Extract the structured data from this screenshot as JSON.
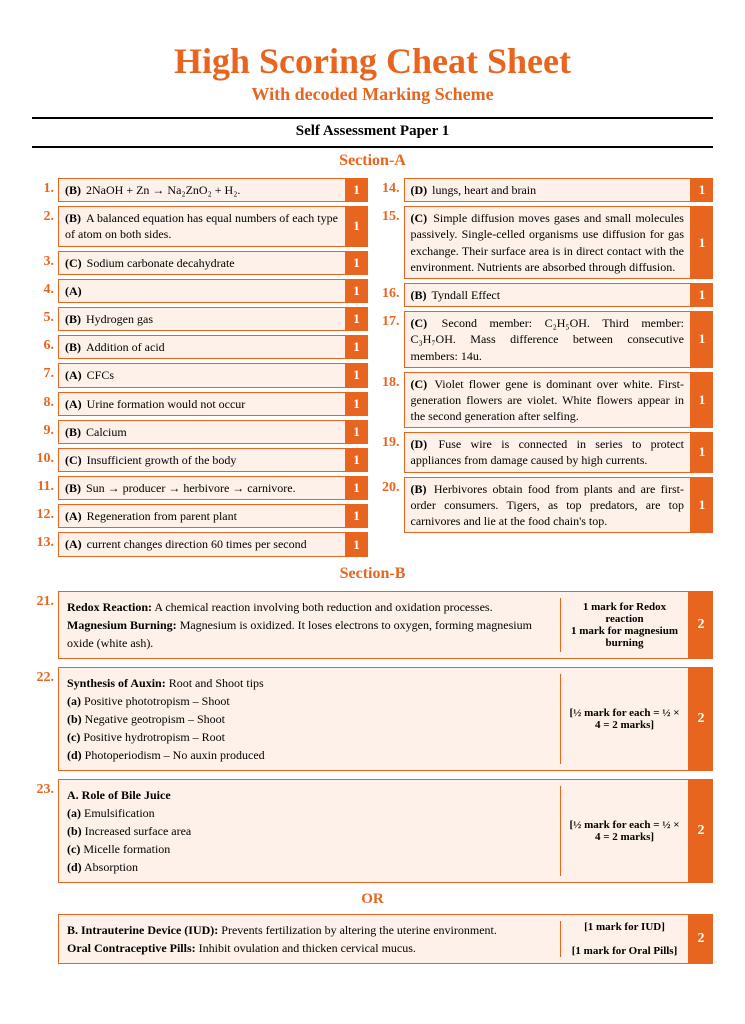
{
  "colors": {
    "accent": "#e8651f",
    "box_bg": "#fdf1e9",
    "text": "#000000"
  },
  "title": "High Scoring Cheat Sheet",
  "subtitle": "With decoded Marking Scheme",
  "paper": "Self Assessment Paper 1",
  "section_a": "Section-A",
  "section_b": "Section-B",
  "or_label": "OR",
  "left": [
    {
      "n": "1.",
      "l": "(B)",
      "t": "2NaOH + Zn → Na₂ZnO₂ + H₂.",
      "m": "1"
    },
    {
      "n": "2.",
      "l": "(B)",
      "t": "A balanced equation has equal numbers of each type of atom on both sides.",
      "m": "1"
    },
    {
      "n": "3.",
      "l": "(C)",
      "t": "Sodium carbonate decahydrate",
      "m": "1"
    },
    {
      "n": "4.",
      "l": "(A)",
      "t": "",
      "m": "1"
    },
    {
      "n": "5.",
      "l": "(B)",
      "t": "Hydrogen gas",
      "m": "1"
    },
    {
      "n": "6.",
      "l": "(B)",
      "t": "Addition of acid",
      "m": "1"
    },
    {
      "n": "7.",
      "l": "(A)",
      "t": "CFCs",
      "m": "1"
    },
    {
      "n": "8.",
      "l": "(A)",
      "t": "Urine formation would not occur",
      "m": "1"
    },
    {
      "n": "9.",
      "l": "(B)",
      "t": "Calcium",
      "m": "1"
    },
    {
      "n": "10.",
      "l": "(C)",
      "t": "Insufficient growth of the body",
      "m": "1"
    },
    {
      "n": "11.",
      "l": "(B)",
      "t": "Sun → producer → herbivore → carnivore.",
      "m": "1"
    },
    {
      "n": "12.",
      "l": "(A)",
      "t": "Regeneration from parent plant",
      "m": "1"
    },
    {
      "n": "13.",
      "l": "(A)",
      "t": "current changes direction 60 times per second",
      "m": "1"
    }
  ],
  "right": [
    {
      "n": "14.",
      "l": "(D)",
      "t": "lungs, heart and brain",
      "m": "1"
    },
    {
      "n": "15.",
      "l": "(C)",
      "t": "Simple diffusion moves gases and small molecules passively. Single-celled organisms use diffusion for gas exchange. Their surface area is in direct contact with the environment. Nutrients are absorbed through diffusion.",
      "m": "1"
    },
    {
      "n": "16.",
      "l": "(B)",
      "t": "Tyndall Effect",
      "m": "1"
    },
    {
      "n": "17.",
      "l": "(C)",
      "t": "Second member: C₂H₅OH. Third member: C₃H₇OH. Mass difference between consecutive members: 14u.",
      "m": "1"
    },
    {
      "n": "18.",
      "l": "(C)",
      "t": "Violet flower gene is dominant over white. First-generation flowers are violet. White flowers appear in the second generation after selfing.",
      "m": "1"
    },
    {
      "n": "19.",
      "l": "(D)",
      "t": "Fuse wire is connected in series to protect appliances from damage caused by high currents.",
      "m": "1"
    },
    {
      "n": "20.",
      "l": "(B)",
      "t": "Herbivores obtain food from plants and are first-order consumers. Tigers, as top predators, are top carnivores and lie at the food chain's top.",
      "m": "1"
    }
  ],
  "b": [
    {
      "n": "21.",
      "lines": [
        "<b>Redox Reaction:</b> A chemical reaction involving both reduction and oxidation processes.",
        "<b>Magnesium Burning:</b> Magnesium is oxidized. It loses electrons to oxygen, forming magnesium oxide (white ash)."
      ],
      "scheme": [
        "1 mark for Redox reaction",
        "1 mark for magnesium burning"
      ],
      "m": "2"
    },
    {
      "n": "22.",
      "lines": [
        "<b>Synthesis of Auxin:</b> Root and Shoot tips",
        "<b>(a)</b> Positive phototropism – Shoot",
        "<b>(b)</b> Negative geotropism – Shoot",
        "<b>(c)</b> Positive hydrotropism – Root",
        "<b>(d)</b> Photoperiodism – No auxin produced"
      ],
      "scheme": [
        "[½ mark for each = ½ × 4 = 2 marks]"
      ],
      "m": "2"
    },
    {
      "n": "23.",
      "lines": [
        "<b>A. Role of Bile Juice</b>",
        "<b>(a)</b> Emulsification",
        "<b>(b)</b> Increased surface area",
        "<b>(c)</b> Micelle formation",
        "<b>(d)</b> Absorption"
      ],
      "scheme": [
        "[½ mark for each = ½ × 4 = 2 marks]"
      ],
      "m": "2"
    }
  ],
  "or_item": {
    "lines": [
      "<b>B. Intrauterine Device (IUD):</b> Prevents fertilization by altering the uterine environment.",
      "<b>Oral Contraceptive Pills:</b> Inhibit ovulation and thicken cervical mucus."
    ],
    "scheme": [
      "[1 mark for IUD]",
      "",
      "[1 mark for Oral Pills]"
    ],
    "m": "2"
  }
}
